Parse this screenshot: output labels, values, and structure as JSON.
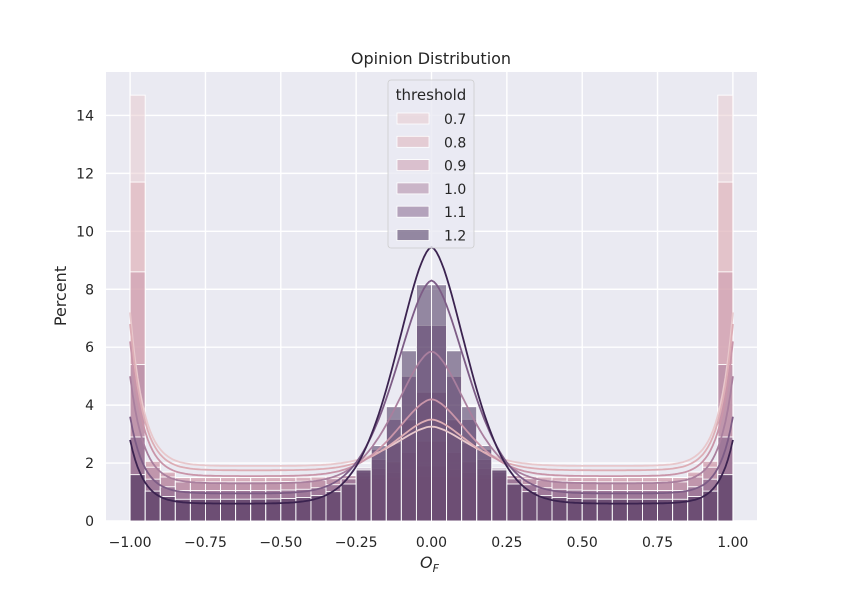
{
  "chart_data": {
    "type": "histogram",
    "title": "Opinion Distribution",
    "xlabel_main": "O",
    "xlabel_sub": "F",
    "ylabel": "Percent",
    "xlim": [
      -1.08,
      1.08
    ],
    "ylim": [
      0,
      15.5
    ],
    "xticks": [
      -1.0,
      -0.75,
      -0.5,
      -0.25,
      0.0,
      0.25,
      0.5,
      0.75,
      1.0
    ],
    "xtick_labels": [
      "−1.00",
      "−0.75",
      "−0.50",
      "−0.25",
      "0.00",
      "0.25",
      "0.50",
      "0.75",
      "1.00"
    ],
    "yticks": [
      0,
      2,
      4,
      6,
      8,
      10,
      12,
      14
    ],
    "ytick_labels": [
      "0",
      "2",
      "4",
      "6",
      "8",
      "10",
      "12",
      "14"
    ],
    "grid": true,
    "legend_title": "threshold",
    "legend_position": "top-center",
    "bins": 40,
    "series": [
      {
        "name": "0.7",
        "color": "#e8c8cc",
        "edge_peak": 14.7,
        "center_peak": 1.55,
        "flat": 1.45,
        "kde": {
          "edge": 7.2,
          "center": 1.6,
          "flat": 1.9,
          "mid": 1.6
        }
      },
      {
        "name": "0.8",
        "color": "#ddadb5",
        "edge_peak": 11.7,
        "center_peak": 1.95,
        "flat": 1.5,
        "kde": {
          "edge": 6.8,
          "center": 2.0,
          "flat": 1.75,
          "mid": 1.65
        }
      },
      {
        "name": "0.9",
        "color": "#c995a9",
        "edge_peak": 8.6,
        "center_peak": 2.9,
        "flat": 1.5,
        "kde": {
          "edge": 6.2,
          "center": 2.9,
          "flat": 1.55,
          "mid": 1.65
        }
      },
      {
        "name": "1.0",
        "color": "#a97f9e",
        "edge_peak": 5.4,
        "center_peak": 4.8,
        "flat": 1.35,
        "kde": {
          "edge": 5.0,
          "center": 4.8,
          "flat": 1.3,
          "mid": 1.65
        }
      },
      {
        "name": "1.1",
        "color": "#7d5c86",
        "edge_peak": 2.9,
        "center_peak": 7.4,
        "flat": 1.05,
        "kde": {
          "edge": 3.6,
          "center": 7.6,
          "flat": 0.95,
          "mid": 1.65
        }
      },
      {
        "name": "1.2",
        "color": "#3b2350",
        "edge_peak": 1.6,
        "center_peak": 9.0,
        "flat": 0.75,
        "kde": {
          "edge": 2.8,
          "center": 9.1,
          "flat": 0.6,
          "mid": 1.65
        }
      }
    ]
  }
}
